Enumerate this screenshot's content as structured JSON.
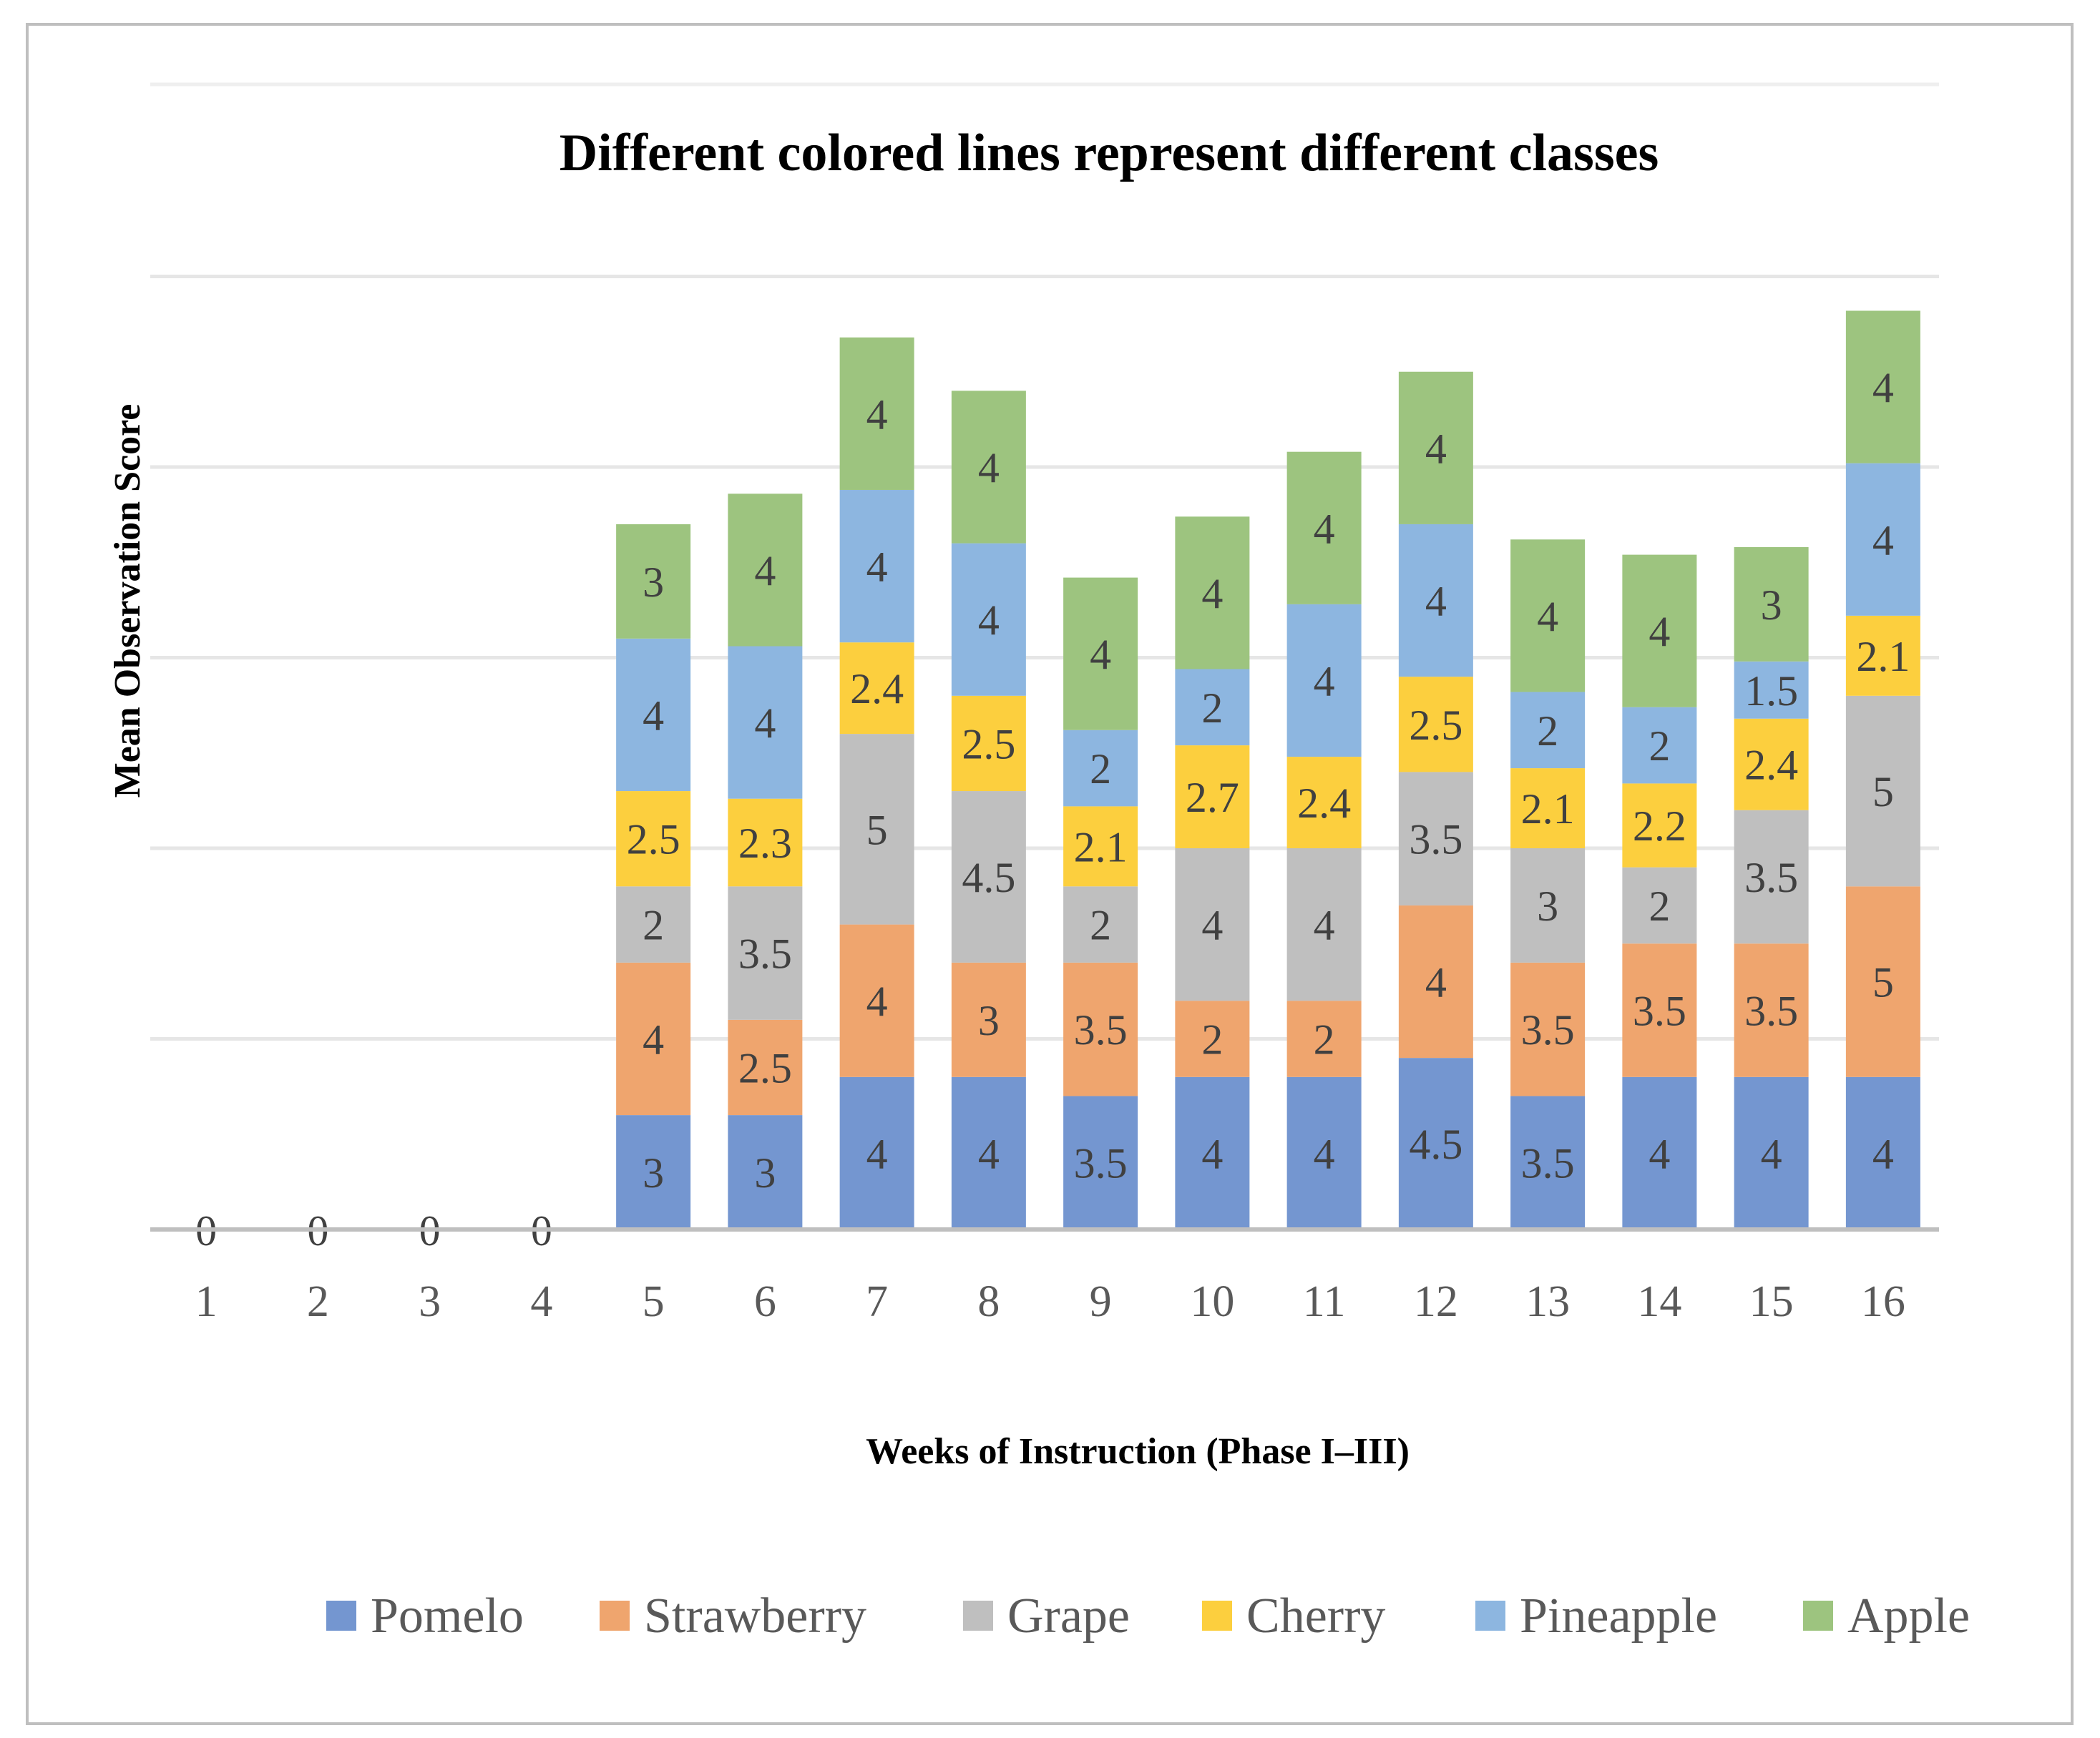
{
  "chart_data": {
    "type": "bar",
    "stacked": true,
    "title": "Different colored lines represent different classes",
    "xlabel": "Weeks of Instruction (Phase I–III)",
    "ylabel": "Mean Observation Score",
    "ylim": [
      0,
      25
    ],
    "gridlines": [
      5,
      10,
      15,
      20,
      25
    ],
    "categories": [
      "1",
      "2",
      "3",
      "4",
      "5",
      "6",
      "7",
      "8",
      "9",
      "10",
      "11",
      "12",
      "13",
      "14",
      "15",
      "16"
    ],
    "series": [
      {
        "name": "Pomelo",
        "color": "#7496d0",
        "values": [
          0,
          0,
          0,
          0,
          3,
          3,
          4,
          4,
          3.5,
          4,
          4,
          4.5,
          3.5,
          4,
          4,
          4
        ]
      },
      {
        "name": "Strawberry",
        "color": "#efa56e",
        "values": [
          0,
          0,
          0,
          0,
          4,
          2.5,
          4,
          3,
          3.5,
          2,
          2,
          4,
          3.5,
          3.5,
          3.5,
          5
        ]
      },
      {
        "name": "Grape",
        "color": "#bfbfbf",
        "values": [
          0,
          0,
          0,
          0,
          2,
          3.5,
          5,
          4.5,
          2,
          4,
          4,
          3.5,
          3,
          2,
          3.5,
          5
        ]
      },
      {
        "name": "Cherry",
        "color": "#fccf3e",
        "values": [
          0,
          0,
          0,
          0,
          2.5,
          2.3,
          2.4,
          2.5,
          2.1,
          2.7,
          2.4,
          2.5,
          2.1,
          2.2,
          2.4,
          2.1
        ]
      },
      {
        "name": "Pineapple",
        "color": "#8db6e0",
        "values": [
          0,
          0,
          0,
          0,
          4,
          4,
          4,
          4,
          2,
          2,
          4,
          4,
          2,
          2,
          1.5,
          4
        ]
      },
      {
        "name": "Apple",
        "color": "#9dc47f",
        "values": [
          0,
          0,
          0,
          0,
          3,
          4,
          4,
          4,
          4,
          4,
          4,
          4,
          4,
          4,
          3,
          4
        ]
      }
    ],
    "zero_label": "0",
    "legend_position": "bottom"
  }
}
